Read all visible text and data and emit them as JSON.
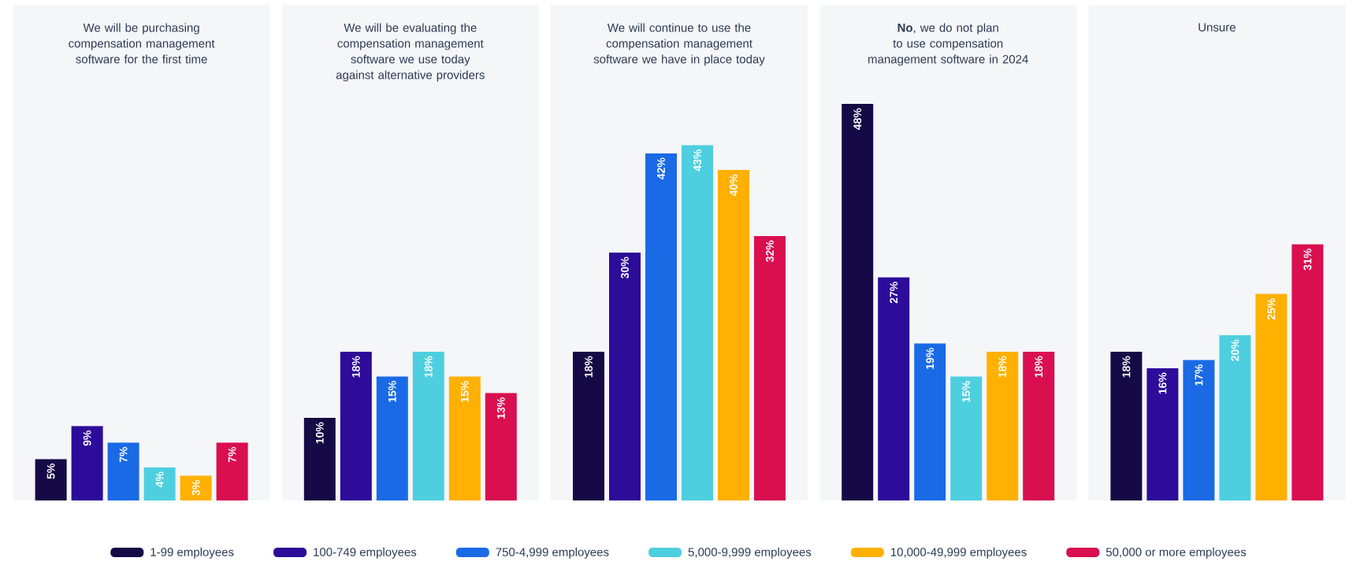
{
  "chart_data": [
    {
      "type": "bar",
      "title": "We will be purchasing compensation management software for the first time",
      "categories": [
        null
      ],
      "ylim": [
        0,
        60
      ],
      "legend": "bottom",
      "series": [
        {
          "name": "1-99 employees",
          "color": "#150a45",
          "values": [
            5
          ],
          "value_labels": [
            "5%"
          ]
        },
        {
          "name": "100-749 employees",
          "color": "#2c0c99",
          "values": [
            9
          ],
          "value_labels": [
            "9%"
          ]
        },
        {
          "name": "750-4,999 employees",
          "color": "#1a6ae6",
          "values": [
            7
          ],
          "value_labels": [
            "7%"
          ]
        },
        {
          "name": "5,000-9,999 employees",
          "color": "#4ecfdf",
          "values": [
            4
          ],
          "value_labels": [
            "4%"
          ]
        },
        {
          "name": "10,000-49,999 employees",
          "color": "#ffb000",
          "values": [
            3
          ],
          "value_labels": [
            "3%"
          ]
        },
        {
          "name": "50,000 or more employees",
          "color": "#d90f50",
          "values": [
            7
          ],
          "value_labels": [
            "7%"
          ]
        }
      ]
    },
    {
      "type": "bar",
      "title": "We will be evaluating the compensation management software we use today against alternative providers",
      "categories": [
        null
      ],
      "ylim": [
        0,
        60
      ],
      "series": [
        {
          "color": "#150a45",
          "values": [
            10
          ],
          "value_labels": [
            "10%"
          ]
        },
        {
          "color": "#2c0c99",
          "values": [
            18
          ],
          "value_labels": [
            "18%"
          ]
        },
        {
          "color": "#1a6ae6",
          "values": [
            15
          ],
          "value_labels": [
            "15%"
          ]
        },
        {
          "color": "#4ecfdf",
          "values": [
            18
          ],
          "value_labels": [
            "18%"
          ]
        },
        {
          "color": "#ffb000",
          "values": [
            15
          ],
          "value_labels": [
            "15%"
          ]
        },
        {
          "color": "#d90f50",
          "values": [
            13
          ],
          "value_labels": [
            "13%"
          ]
        }
      ]
    },
    {
      "type": "bar",
      "title": "We will continue to use the compensation management software we have in place today",
      "categories": [
        null
      ],
      "ylim": [
        0,
        60
      ],
      "series": [
        {
          "color": "#150a45",
          "values": [
            18
          ],
          "value_labels": [
            "18%"
          ]
        },
        {
          "color": "#2c0c99",
          "values": [
            30
          ],
          "value_labels": [
            "30%"
          ]
        },
        {
          "color": "#1a6ae6",
          "values": [
            42
          ],
          "value_labels": [
            "42%"
          ]
        },
        {
          "color": "#4ecfdf",
          "values": [
            43
          ],
          "value_labels": [
            "43%"
          ]
        },
        {
          "color": "#ffb000",
          "values": [
            40
          ],
          "value_labels": [
            "40%"
          ]
        },
        {
          "color": "#d90f50",
          "values": [
            32
          ],
          "value_labels": [
            "32%"
          ]
        }
      ]
    },
    {
      "type": "bar",
      "title": "**No**, we do not plan to use compensation management software in 2024",
      "categories": [
        null
      ],
      "ylim": [
        0,
        60
      ],
      "series": [
        {
          "color": "#150a45",
          "values": [
            48
          ],
          "value_labels": [
            "48%"
          ]
        },
        {
          "color": "#2c0c99",
          "values": [
            27
          ],
          "value_labels": [
            "27%"
          ]
        },
        {
          "color": "#1a6ae6",
          "values": [
            19
          ],
          "value_labels": [
            "19%"
          ]
        },
        {
          "color": "#4ecfdf",
          "values": [
            15
          ],
          "value_labels": [
            "15%"
          ]
        },
        {
          "color": "#ffb000",
          "values": [
            18
          ],
          "value_labels": [
            "18%"
          ]
        },
        {
          "color": "#d90f50",
          "values": [
            18
          ],
          "value_labels": [
            "18%"
          ]
        }
      ]
    },
    {
      "type": "bar",
      "title": "Unsure",
      "categories": [
        null
      ],
      "ylim": [
        0,
        60
      ],
      "series": [
        {
          "color": "#150a45",
          "values": [
            18
          ],
          "value_labels": [
            "18%"
          ]
        },
        {
          "color": "#2c0c99",
          "values": [
            16
          ],
          "value_labels": [
            "16%"
          ]
        },
        {
          "color": "#1a6ae6",
          "values": [
            17
          ],
          "value_labels": [
            "17%"
          ]
        },
        {
          "color": "#4ecfdf",
          "values": [
            20
          ],
          "value_labels": [
            "20%"
          ]
        },
        {
          "color": "#ffb000",
          "values": [
            25
          ],
          "value_labels": [
            "25%"
          ]
        },
        {
          "color": "#d90f50",
          "values": [
            31
          ],
          "value_labels": [
            "31%"
          ]
        }
      ]
    }
  ]
}
